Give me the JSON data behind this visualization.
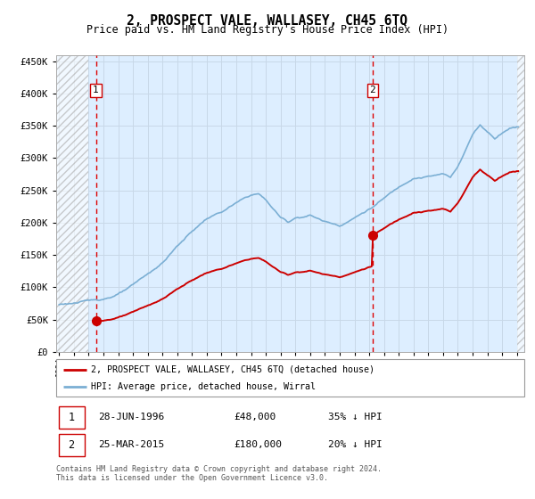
{
  "title": "2, PROSPECT VALE, WALLASEY, CH45 6TQ",
  "subtitle": "Price paid vs. HM Land Registry's House Price Index (HPI)",
  "sale1_date": 1996.49,
  "sale1_price": 48000,
  "sale2_date": 2015.23,
  "sale2_price": 180000,
  "legend_line1": "2, PROSPECT VALE, WALLASEY, CH45 6TQ (detached house)",
  "legend_line2": "HPI: Average price, detached house, Wirral",
  "table_row1": [
    "1",
    "28-JUN-1996",
    "£48,000",
    "35% ↓ HPI"
  ],
  "table_row2": [
    "2",
    "25-MAR-2015",
    "£180,000",
    "20% ↓ HPI"
  ],
  "footnote": "Contains HM Land Registry data © Crown copyright and database right 2024.\nThis data is licensed under the Open Government Licence v3.0.",
  "hpi_color": "#7bafd4",
  "sale_color": "#cc0000",
  "vline_color": "#dd0000",
  "grid_color": "#c8d8e8",
  "bg_color": "#ddeeff",
  "label_box_color": "#cc0000",
  "ylim_max": 460000,
  "ylim_min": 0,
  "xlim_min": 1993.8,
  "xlim_max": 2025.5,
  "hatch_end": 1996.0,
  "hatch_start": 2025.0
}
